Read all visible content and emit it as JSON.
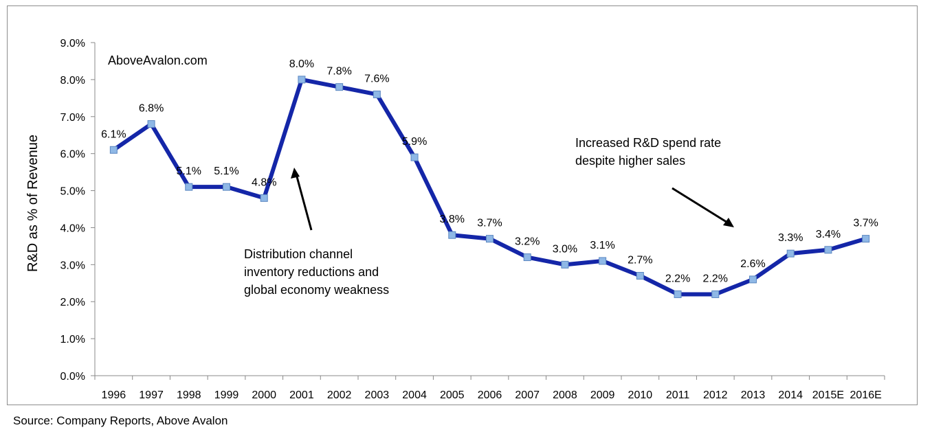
{
  "source_note": "Source: Company Reports, Above Avalon",
  "chart_data": {
    "type": "line",
    "title": "",
    "watermark": "AboveAvalon.com",
    "xlabel": "",
    "ylabel": "R&D as % of Revenue",
    "ylim": [
      0,
      9
    ],
    "ytick_values": [
      0,
      1,
      2,
      3,
      4,
      5,
      6,
      7,
      8,
      9
    ],
    "yticks": [
      "0.0%",
      "1.0%",
      "2.0%",
      "3.0%",
      "4.0%",
      "5.0%",
      "6.0%",
      "7.0%",
      "8.0%",
      "9.0%"
    ],
    "grid": false,
    "line_color": "#1426a8",
    "marker_color": "#8fb8e6",
    "categories": [
      "1996",
      "1997",
      "1998",
      "1999",
      "2000",
      "2001",
      "2002",
      "2003",
      "2004",
      "2005",
      "2006",
      "2007",
      "2008",
      "2009",
      "2010",
      "2011",
      "2012",
      "2013",
      "2014",
      "2015E",
      "2016E"
    ],
    "values": [
      6.1,
      6.8,
      5.1,
      5.1,
      4.8,
      8.0,
      7.8,
      7.6,
      5.9,
      3.8,
      3.7,
      3.2,
      3.0,
      3.1,
      2.7,
      2.2,
      2.2,
      2.6,
      3.3,
      3.4,
      3.7
    ],
    "data_labels": [
      "6.1%",
      "6.8%",
      "5.1%",
      "5.1%",
      "4.8%",
      "8.0%",
      "7.8%",
      "7.6%",
      "5.9%",
      "3.8%",
      "3.7%",
      "3.2%",
      "3.0%",
      "3.1%",
      "2.7%",
      "2.2%",
      "2.2%",
      "2.6%",
      "3.3%",
      "3.4%",
      "3.7%"
    ],
    "annotations": [
      {
        "lines": [
          "Distribution channel",
          "inventory reductions and",
          "global economy weakness"
        ],
        "arrow_target_category": "2001"
      },
      {
        "lines": [
          "Increased R&D spend rate",
          "despite higher sales"
        ],
        "arrow_target_category": "2013"
      }
    ]
  }
}
